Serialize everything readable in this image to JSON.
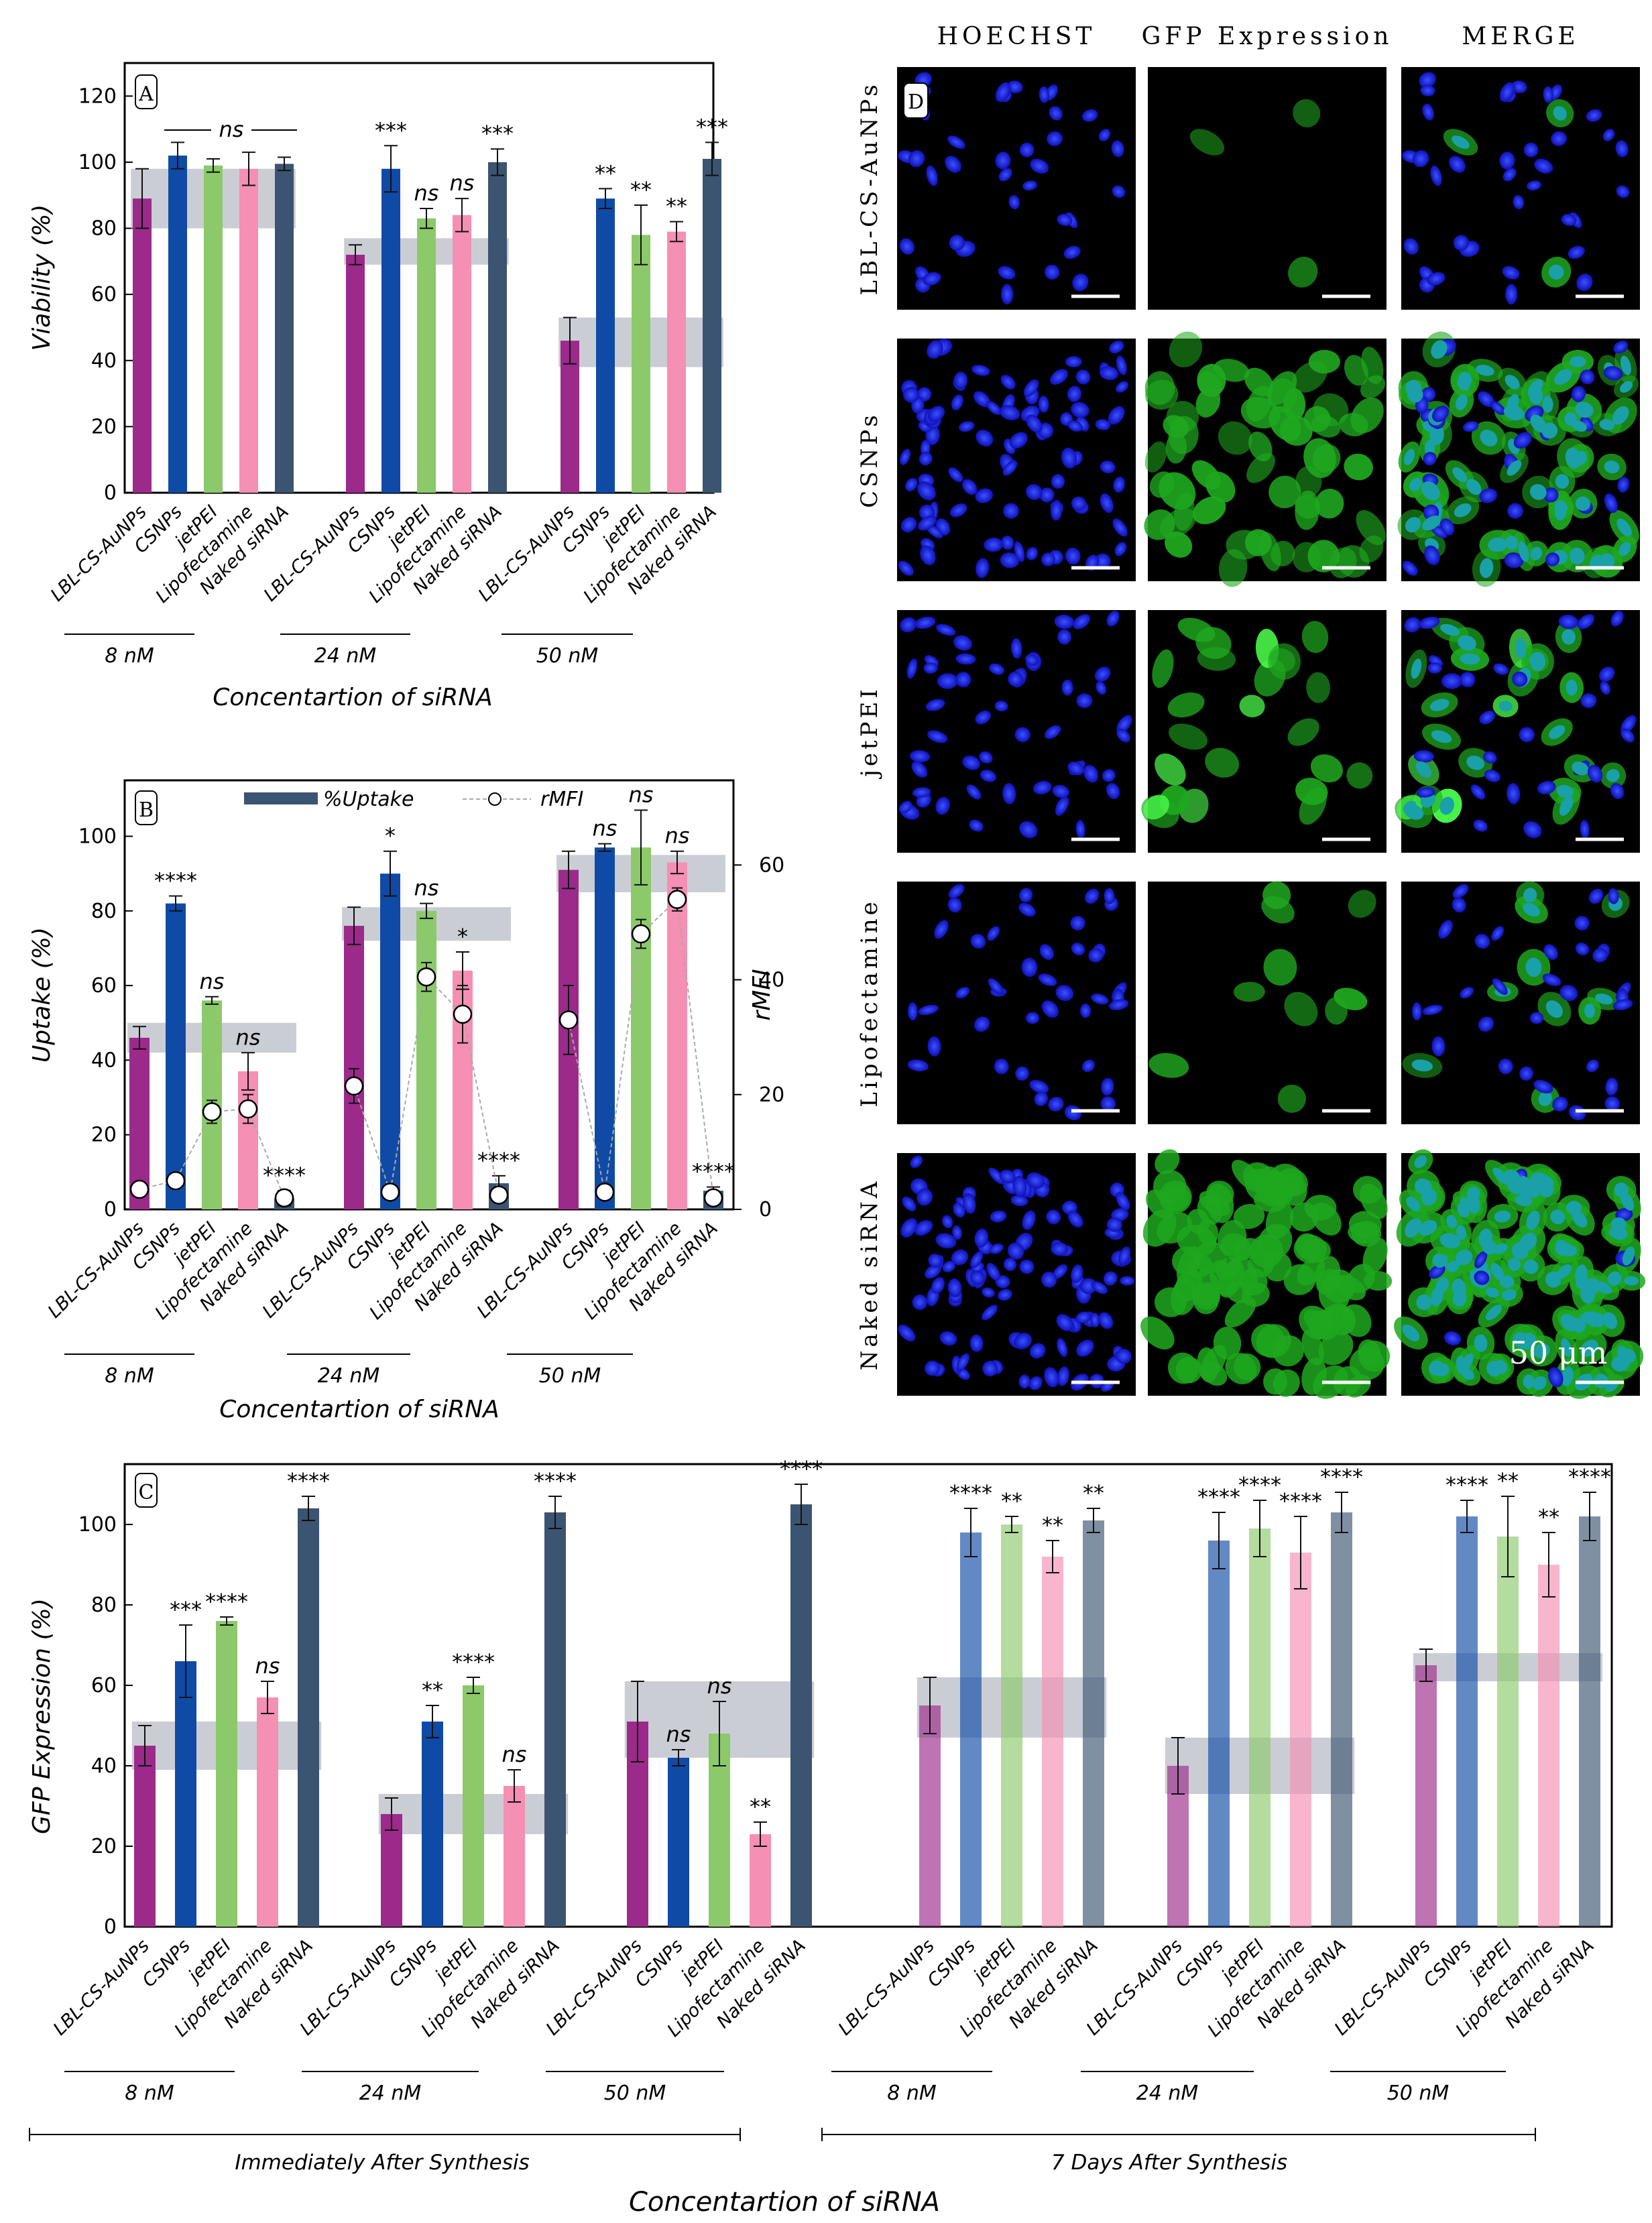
{
  "figure": {
    "panels": {
      "A": {
        "label": "A",
        "ylabel": "Viability (%)",
        "xlabel": "Concentartion of siRNA",
        "group_bracket_label": "ns"
      },
      "B": {
        "label": "B",
        "ylabel": "Uptake (%)",
        "y2label": "rMFI",
        "xlabel": "Concentartion of siRNA",
        "legend": {
          "bar": "%Uptake",
          "line": "rMFI"
        }
      },
      "C": {
        "label": "C",
        "ylabel": "GFP Expression (%)",
        "xlabel": "Concentartion of siRNA",
        "sections": [
          "Immediately After Synthesis",
          "7 Days After Synthesis"
        ]
      },
      "D": {
        "label": "D",
        "columns": [
          "HOECHST",
          "GFP Expression",
          "MERGE"
        ],
        "rows": [
          "LBL-CS-AuNPs",
          "CSNPs",
          "jetPEI",
          "Lipofectamine",
          "Naked siRNA"
        ],
        "scale_label": "50 μm"
      }
    },
    "colors": {
      "LBL-CS-AuNPs": "#9b2a8a",
      "CSNPs": "#0f4aa6",
      "jetPEI": "#8cc96a",
      "Lipofectamine": "#f58fb4",
      "Naked siRNA": "#3b5471",
      "band": "#b9bcc7"
    }
  },
  "chart_data": [
    {
      "panel": "A",
      "type": "bar",
      "groups": [
        "8 nM",
        "24 nM",
        "50 nM"
      ],
      "categories": [
        "LBL-CS-AuNPs",
        "CSNPs",
        "jetPEI",
        "Lipofectamine",
        "Naked siRNA"
      ],
      "values": [
        [
          89,
          102,
          99,
          98,
          99.5
        ],
        [
          72,
          98,
          83,
          84,
          100
        ],
        [
          46,
          89,
          78,
          79,
          101
        ]
      ],
      "errors": [
        [
          9,
          4,
          2,
          5,
          2
        ],
        [
          3,
          7,
          3,
          5,
          4
        ],
        [
          7,
          3,
          9,
          3,
          5
        ]
      ],
      "annotations": [
        [
          "",
          "",
          "",
          "",
          ""
        ],
        [
          "",
          "***",
          "ns",
          "ns",
          "***"
        ],
        [
          "",
          "**",
          "**",
          "**",
          "***"
        ]
      ],
      "bands": [
        [
          80,
          98
        ],
        [
          69,
          77
        ],
        [
          38,
          53
        ]
      ],
      "ylim": [
        0,
        130
      ],
      "yticks": [
        0,
        20,
        40,
        60,
        80,
        100,
        120
      ]
    },
    {
      "panel": "B",
      "type": "bar",
      "groups": [
        "8 nM",
        "24 nM",
        "50 nM"
      ],
      "categories": [
        "LBL-CS-AuNPs",
        "CSNPs",
        "jetPEI",
        "Lipofectamine",
        "Naked siRNA"
      ],
      "values": [
        [
          46,
          82,
          56,
          37,
          3
        ],
        [
          76,
          90,
          80,
          64,
          7
        ],
        [
          91,
          97,
          97,
          93,
          5
        ]
      ],
      "errors": [
        [
          3,
          2,
          1,
          5,
          2
        ],
        [
          5,
          6,
          2,
          5,
          2
        ],
        [
          5,
          1,
          10,
          3,
          1
        ]
      ],
      "rmfi": [
        [
          3.5,
          5,
          17,
          17.5,
          2
        ],
        [
          21.5,
          3,
          40.5,
          34,
          2.5
        ],
        [
          33,
          3,
          48,
          54,
          2
        ]
      ],
      "rmfi_errors": [
        [
          0,
          0,
          2,
          2.5,
          0
        ],
        [
          3,
          0,
          2.5,
          5,
          0
        ],
        [
          6,
          0,
          2.5,
          2,
          0
        ]
      ],
      "annotations": [
        [
          "",
          "****",
          "ns",
          "ns",
          "****"
        ],
        [
          "",
          "*",
          "ns",
          "*",
          "****"
        ],
        [
          "",
          "ns",
          "ns",
          "ns",
          "****"
        ]
      ],
      "bands": [
        [
          42,
          50
        ],
        [
          72,
          81
        ],
        [
          85,
          95
        ]
      ],
      "ylim": [
        0,
        115
      ],
      "yticks": [
        0,
        20,
        40,
        60,
        80,
        100
      ],
      "y2lim": [
        0,
        74.75
      ],
      "y2ticks": [
        0,
        20,
        40,
        60
      ]
    },
    {
      "panel": "C",
      "type": "bar",
      "groups": [
        "8 nM",
        "24 nM",
        "50 nM",
        "8 nM",
        "24 nM",
        "50 nM"
      ],
      "sections": [
        "Immediately After Synthesis",
        "7 Days After Synthesis"
      ],
      "categories": [
        "LBL-CS-AuNPs",
        "CSNPs",
        "jetPEI",
        "Lipofectamine",
        "Naked siRNA"
      ],
      "values": [
        [
          45,
          66,
          76,
          57,
          104
        ],
        [
          28,
          51,
          60,
          35,
          103
        ],
        [
          51,
          42,
          48,
          23,
          105
        ],
        [
          55,
          98,
          100,
          92,
          101
        ],
        [
          40,
          96,
          99,
          93,
          103
        ],
        [
          65,
          102,
          97,
          90,
          102
        ]
      ],
      "errors": [
        [
          5,
          9,
          1,
          4,
          3
        ],
        [
          4,
          4,
          2,
          4,
          4
        ],
        [
          10,
          2,
          8,
          3,
          5
        ],
        [
          7,
          6,
          2,
          4,
          3
        ],
        [
          7,
          7,
          7,
          9,
          5
        ],
        [
          4,
          4,
          10,
          8,
          6
        ]
      ],
      "annotations": [
        [
          "",
          "***",
          "****",
          "ns",
          "****"
        ],
        [
          "",
          "**",
          "****",
          "ns",
          "****"
        ],
        [
          "",
          "ns",
          "ns",
          "**",
          "****"
        ],
        [
          "",
          "****",
          "**",
          "**",
          "**"
        ],
        [
          "",
          "****",
          "****",
          "****",
          "****"
        ],
        [
          "",
          "****",
          "**",
          "**",
          "****"
        ]
      ],
      "bands": [
        [
          39,
          51
        ],
        [
          23,
          33
        ],
        [
          42,
          61
        ],
        [
          47,
          62
        ],
        [
          33,
          47
        ],
        [
          61,
          68
        ]
      ],
      "ylim": [
        0,
        115
      ],
      "yticks": [
        0,
        20,
        40,
        60,
        80,
        100
      ]
    }
  ]
}
